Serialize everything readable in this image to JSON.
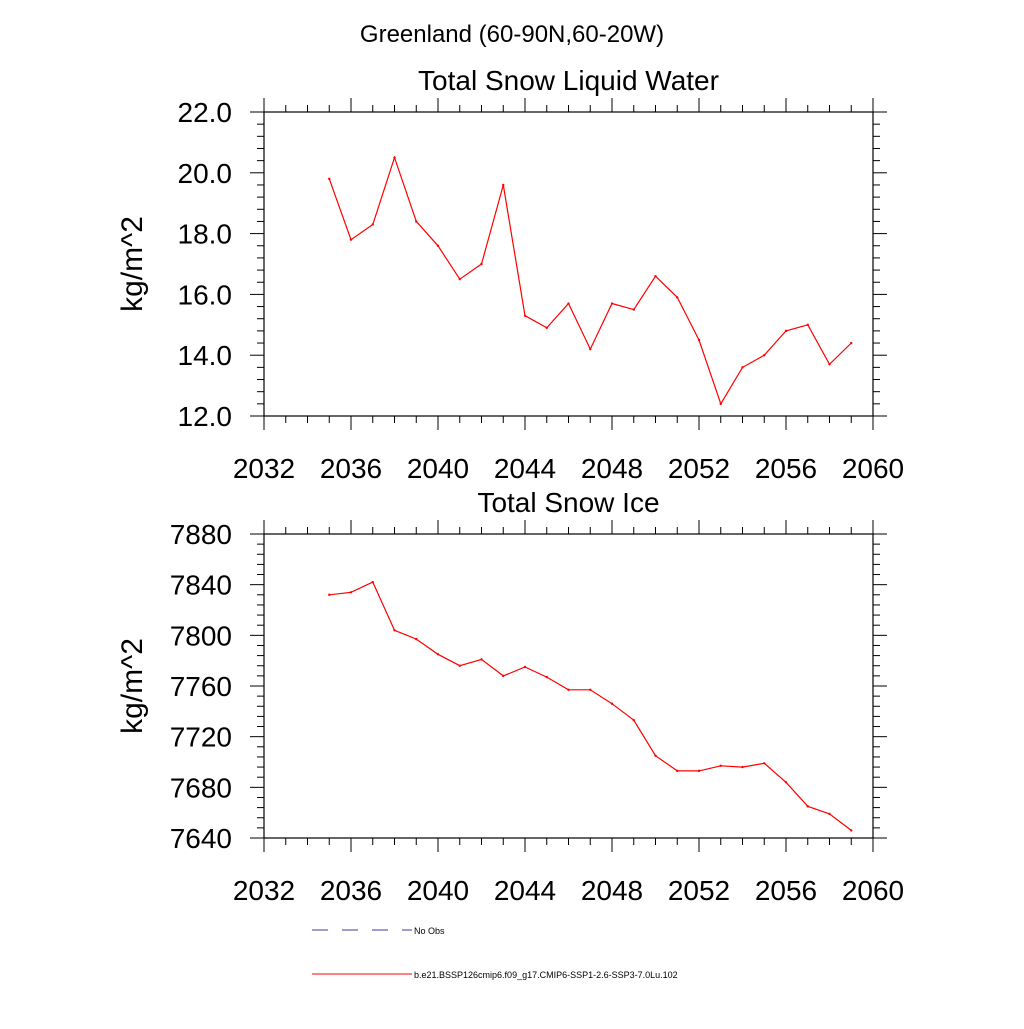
{
  "figure": {
    "suptitle": "Greenland (60-90N,60-20W)"
  },
  "legend": {
    "entries": [
      {
        "label": "No Obs",
        "color": "#3a3aa0",
        "style": "dashed"
      },
      {
        "label": "b.e21.BSSP126cmip6.f09_g17.CMIP6-SSP1-2.6-SSP3-7.0Lu.102",
        "color": "#ff0000",
        "style": "solid"
      }
    ]
  },
  "chart_data": [
    {
      "type": "line",
      "title": "Total Snow Liquid Water",
      "ylabel": "kg/m^2",
      "xlabel": "",
      "xlim": [
        2032,
        2060
      ],
      "ylim": [
        12.0,
        22.0
      ],
      "xticks": [
        2032,
        2036,
        2040,
        2044,
        2048,
        2052,
        2056,
        2060
      ],
      "yticks": [
        "12.0",
        "14.0",
        "16.0",
        "18.0",
        "20.0",
        "22.0"
      ],
      "grid": false,
      "series": [
        {
          "color": "#ff0000",
          "x": [
            2035,
            2036,
            2037,
            2038,
            2039,
            2040,
            2041,
            2042,
            2043,
            2044,
            2045,
            2046,
            2047,
            2048,
            2049,
            2050,
            2051,
            2052,
            2053,
            2054,
            2055,
            2056,
            2057,
            2058,
            2059
          ],
          "values": [
            19.8,
            17.8,
            18.3,
            20.5,
            18.4,
            17.6,
            16.5,
            17.0,
            19.6,
            15.3,
            14.9,
            15.7,
            14.2,
            15.7,
            15.5,
            16.6,
            15.9,
            14.5,
            12.4,
            13.6,
            14.0,
            14.8,
            15.0,
            13.7,
            14.4
          ]
        }
      ]
    },
    {
      "type": "line",
      "title": "Total Snow Ice",
      "ylabel": "kg/m^2",
      "xlabel": "",
      "xlim": [
        2032,
        2060
      ],
      "ylim": [
        7640,
        7880
      ],
      "xticks": [
        2032,
        2036,
        2040,
        2044,
        2048,
        2052,
        2056,
        2060
      ],
      "yticks": [
        "7640",
        "7680",
        "7720",
        "7760",
        "7800",
        "7840",
        "7880"
      ],
      "grid": false,
      "series": [
        {
          "color": "#ff0000",
          "x": [
            2035,
            2036,
            2037,
            2038,
            2039,
            2040,
            2041,
            2042,
            2043,
            2044,
            2045,
            2046,
            2047,
            2048,
            2049,
            2050,
            2051,
            2052,
            2053,
            2054,
            2055,
            2056,
            2057,
            2058,
            2059
          ],
          "values": [
            7832,
            7834,
            7842,
            7804,
            7797,
            7785,
            7776,
            7781,
            7768,
            7775,
            7767,
            7757,
            7757,
            7746,
            7733,
            7705,
            7693,
            7693,
            7697,
            7696,
            7699,
            7684,
            7665,
            7659,
            7646
          ]
        }
      ]
    }
  ]
}
